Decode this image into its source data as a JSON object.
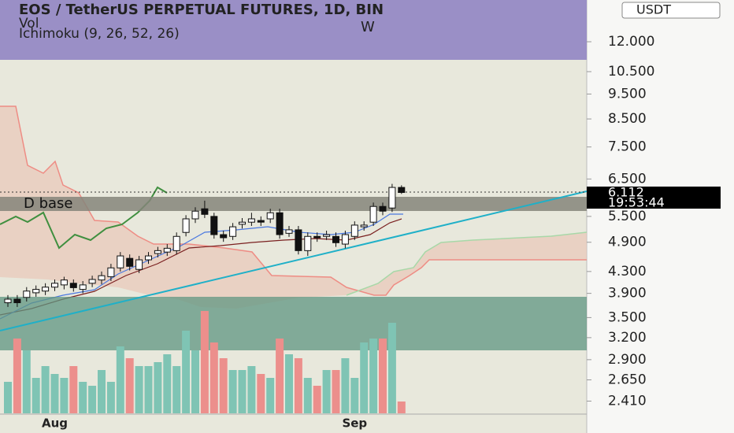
{
  "chart_data": {
    "type": "candlestick",
    "title": "EOS / TetherUS PERPETUAL FUTURES, 1D, BIN",
    "indicators": [
      "Vol",
      "Ichimoku (9, 26, 52, 26)"
    ],
    "annotations": [
      "W",
      "D base"
    ],
    "currency": "USDT",
    "last_price": {
      "value": 6.112,
      "label": "6.112"
    },
    "countdown": "19:53:44",
    "log_scale": true,
    "up_color": "#ffffff",
    "down_color": "#111111",
    "volume_up_color": "#7fc4b4",
    "volume_down_color": "#ec8f8c",
    "ylim": [
      2.09,
      14.46
    ],
    "yticks": [
      {
        "value": 12,
        "label": "12.000"
      },
      {
        "value": 10.5,
        "label": "10.500"
      },
      {
        "value": 9.5,
        "label": "9.500"
      },
      {
        "value": 8.5,
        "label": "8.500"
      },
      {
        "value": 7.5,
        "label": "7.500"
      },
      {
        "value": 6.5,
        "label": "6.500"
      },
      {
        "value": 5.5,
        "label": "5.500"
      },
      {
        "value": 4.9,
        "label": "4.900"
      },
      {
        "value": 4.3,
        "label": "4.300"
      },
      {
        "value": 3.9,
        "label": "3.900"
      },
      {
        "value": 3.5,
        "label": "3.500"
      },
      {
        "value": 3.2,
        "label": "3.200"
      },
      {
        "value": 2.9,
        "label": "2.900"
      },
      {
        "value": 2.65,
        "label": "2.650"
      },
      {
        "value": 2.41,
        "label": "2.410"
      }
    ],
    "categories": [
      null,
      null,
      null,
      null,
      null,
      "Aug",
      null,
      null,
      null,
      null,
      null,
      null,
      null,
      null,
      null,
      null,
      null,
      null,
      null,
      null,
      null,
      null,
      null,
      null,
      null,
      null,
      null,
      null,
      null,
      null,
      null,
      null,
      null,
      null,
      null,
      null,
      null,
      "Sep",
      null,
      null,
      null,
      null,
      null
    ],
    "open": [
      3.74,
      3.8,
      3.83,
      3.91,
      3.94,
      4.01,
      4.05,
      4.08,
      3.97,
      4.08,
      4.14,
      4.2,
      4.37,
      4.56,
      4.34,
      4.53,
      4.66,
      4.69,
      4.72,
      5.12,
      5.44,
      5.69,
      5.5,
      5.07,
      5.03,
      5.31,
      5.36,
      5.4,
      5.44,
      5.59,
      5.1,
      5.18,
      4.72,
      5.03,
      5.03,
      5.03,
      4.86,
      5.03,
      5.25,
      5.36,
      5.75,
      5.71,
      6.26
    ],
    "high": [
      3.87,
      3.87,
      4.01,
      4.04,
      4.08,
      4.15,
      4.2,
      4.15,
      4.12,
      4.22,
      4.3,
      4.45,
      4.69,
      4.64,
      4.61,
      4.69,
      4.8,
      4.86,
      5.12,
      5.53,
      5.73,
      5.9,
      5.59,
      5.16,
      5.34,
      5.46,
      5.59,
      5.5,
      5.69,
      5.69,
      5.27,
      5.27,
      5.12,
      5.12,
      5.16,
      5.12,
      5.16,
      5.38,
      5.38,
      5.85,
      5.85,
      6.36,
      6.32
    ],
    "low": [
      3.67,
      3.67,
      3.76,
      3.84,
      3.87,
      3.94,
      3.97,
      3.93,
      3.9,
      4.01,
      4.06,
      4.12,
      4.3,
      4.32,
      4.27,
      4.45,
      4.58,
      4.61,
      4.64,
      5.03,
      5.34,
      5.46,
      4.98,
      4.91,
      4.95,
      5.21,
      5.27,
      5.27,
      5.34,
      4.98,
      5.02,
      4.64,
      4.61,
      4.91,
      4.95,
      4.8,
      4.77,
      4.95,
      5.16,
      5.27,
      5.53,
      5.61,
      6.08
    ],
    "close": [
      3.8,
      3.74,
      3.94,
      3.97,
      4.01,
      4.08,
      4.14,
      4.0,
      4.05,
      4.15,
      4.22,
      4.37,
      4.61,
      4.4,
      4.53,
      4.61,
      4.72,
      4.77,
      5.03,
      5.44,
      5.63,
      5.55,
      5.07,
      5.0,
      5.25,
      5.36,
      5.44,
      5.36,
      5.59,
      5.07,
      5.18,
      4.72,
      5.03,
      5.0,
      5.07,
      4.89,
      5.07,
      5.29,
      5.29,
      5.75,
      5.63,
      6.26,
      6.12
    ],
    "volume": [
      40,
      95,
      80,
      45,
      60,
      50,
      45,
      60,
      40,
      35,
      55,
      40,
      85,
      70,
      60,
      60,
      65,
      75,
      60,
      105,
      80,
      130,
      90,
      70,
      55,
      55,
      60,
      50,
      45,
      95,
      75,
      70,
      45,
      35,
      55,
      55,
      70,
      45,
      90,
      95,
      95,
      115,
      15
    ]
  }
}
